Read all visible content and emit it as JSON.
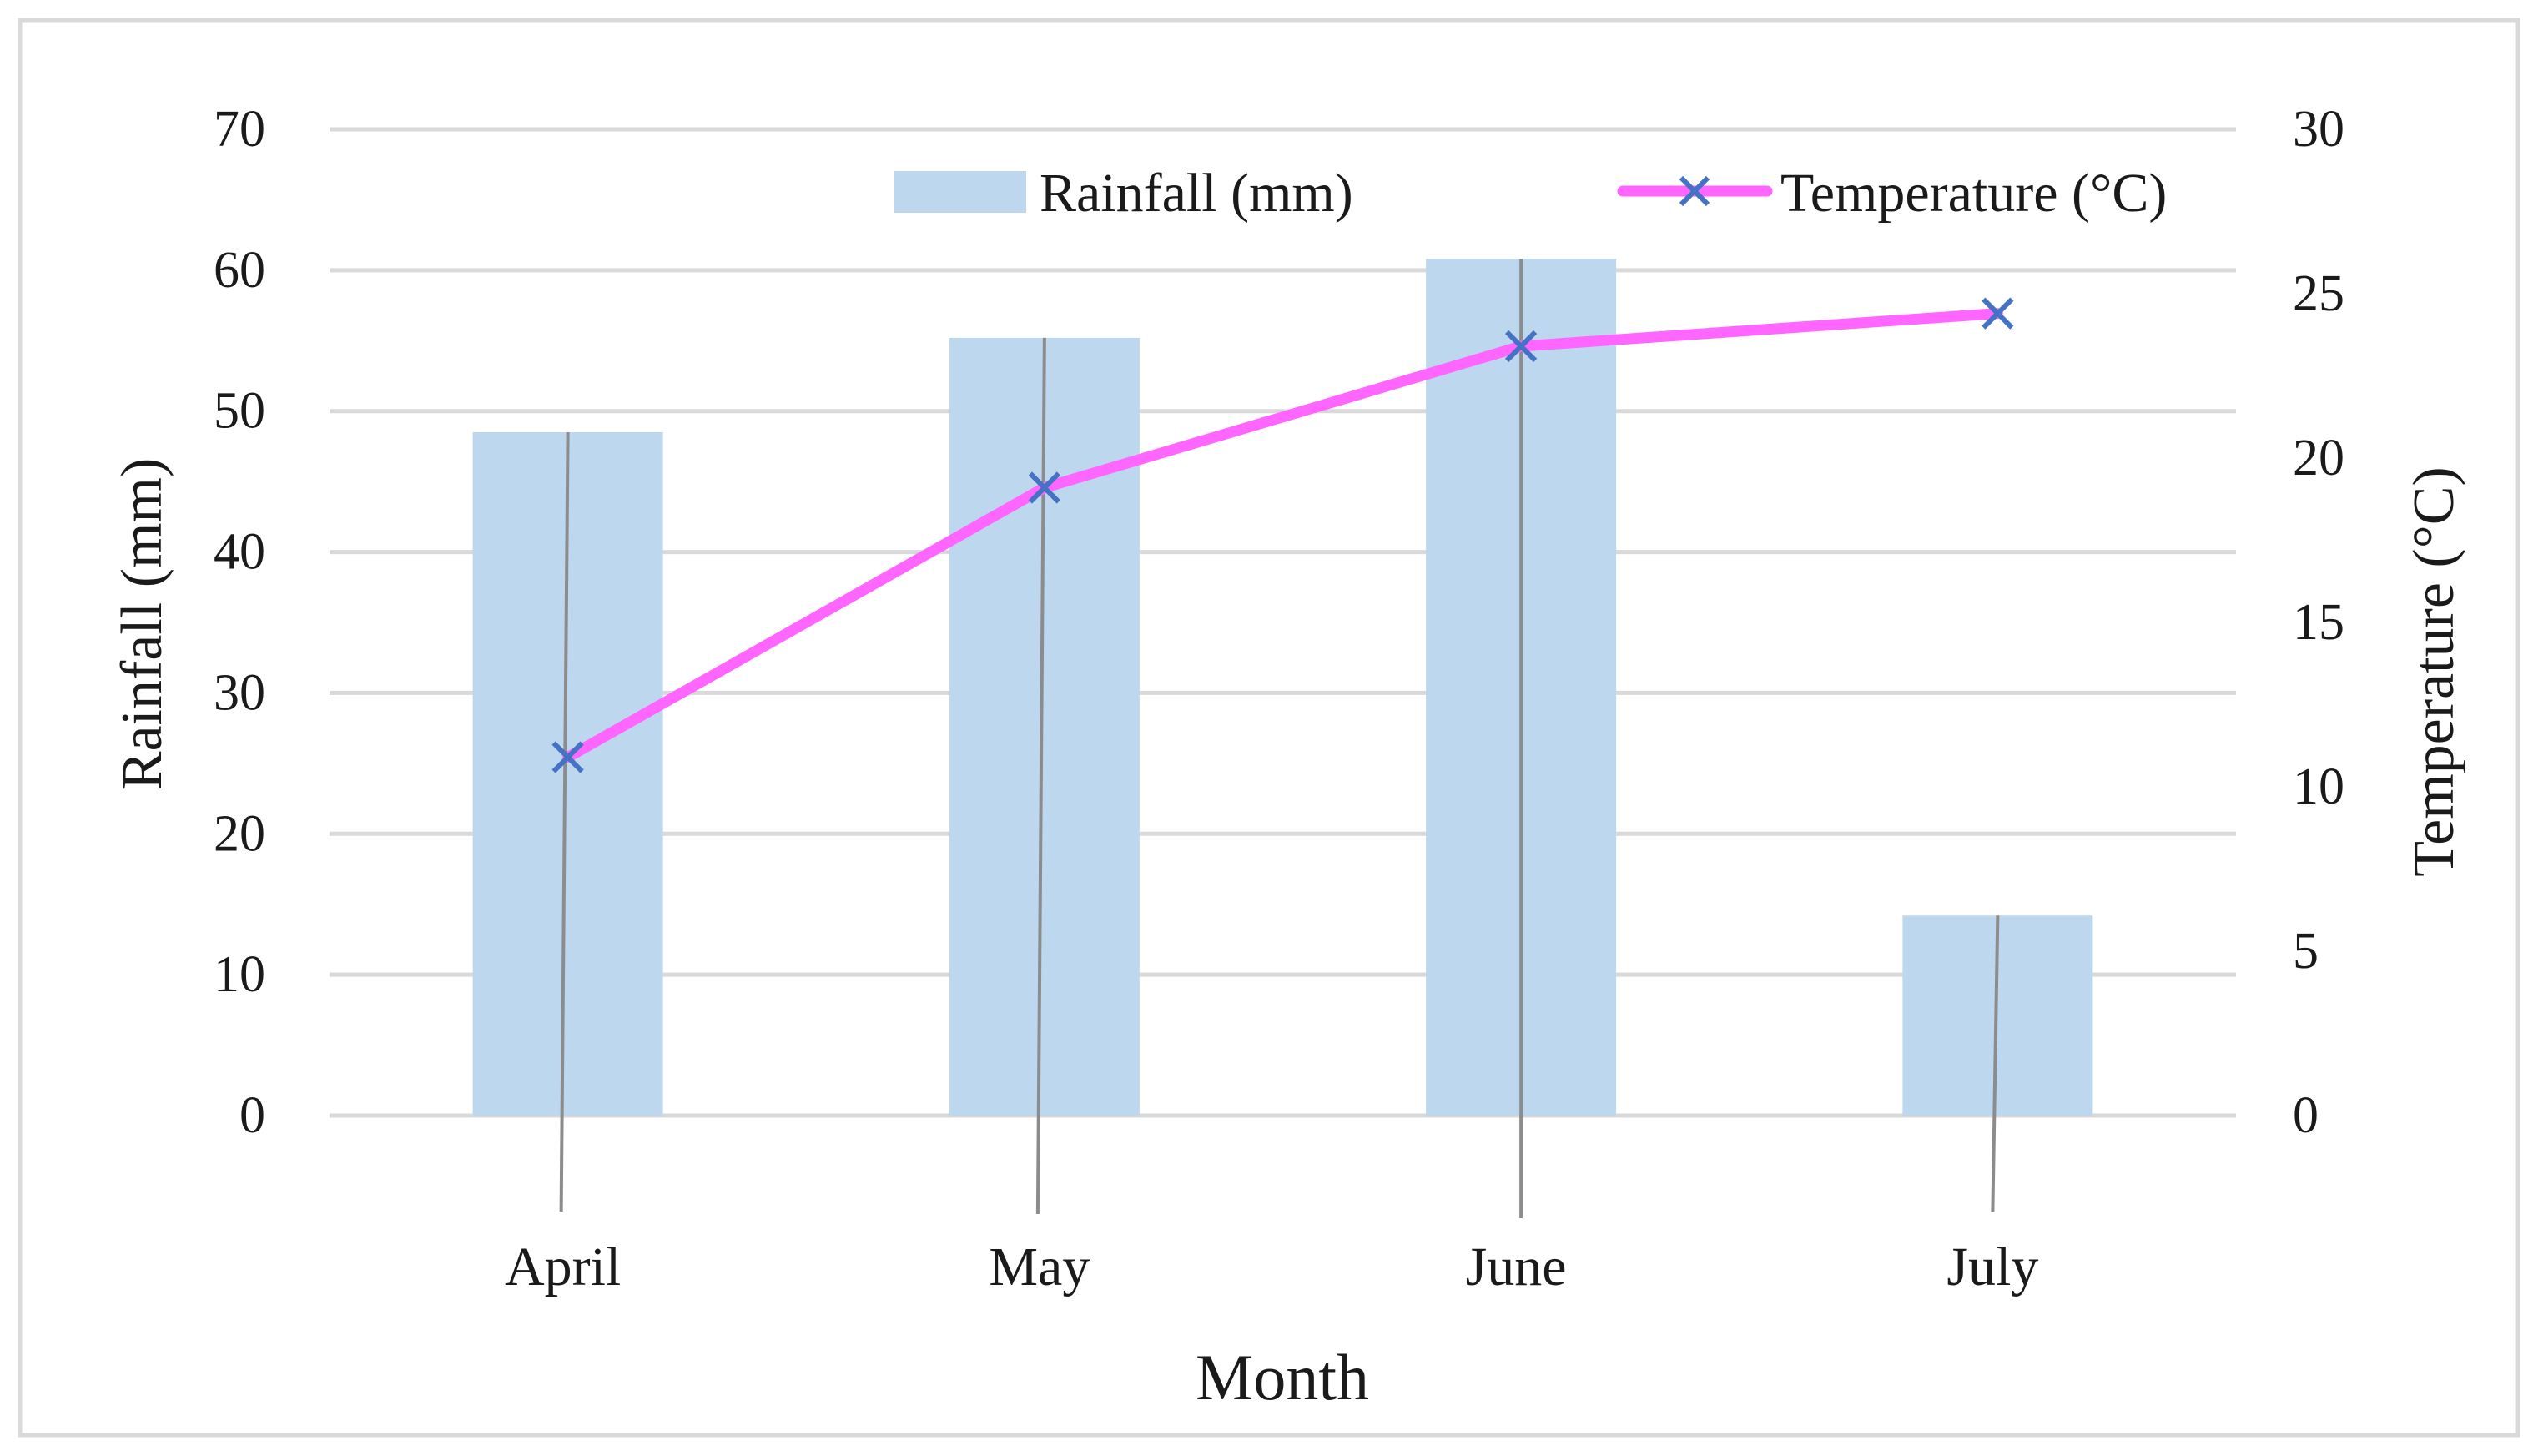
{
  "chart_data": {
    "type": "bar+line",
    "title": "",
    "categories": [
      "April",
      "May",
      "June",
      "July"
    ],
    "xlabel": "Month",
    "ylabel": "Rainfall (mm)",
    "y2label": "Temperature (°C)",
    "ylim": [
      0,
      70
    ],
    "y2lim": [
      0,
      30
    ],
    "yticks": [
      0,
      10,
      20,
      30,
      40,
      50,
      60,
      70
    ],
    "y2ticks": [
      0,
      5,
      10,
      15,
      20,
      25,
      30
    ],
    "grid": true,
    "legend_position": "top-right",
    "series": [
      {
        "name": "Rainfall (mm)",
        "type": "bar",
        "axis": "left",
        "color": "#bdd7ee",
        "values": [
          48.5,
          55.2,
          60.8,
          14.2
        ]
      },
      {
        "name": "Temperature (°C)",
        "type": "line",
        "axis": "right",
        "color": "#ff66ff",
        "marker": "x",
        "marker_color": "#4472c4",
        "values": [
          10.9,
          19.1,
          23.4,
          24.4
        ]
      }
    ]
  },
  "colors": {
    "grid": "#d9d9d9",
    "frame": "#d9d9d9",
    "error_line": "#8c8c8c"
  }
}
